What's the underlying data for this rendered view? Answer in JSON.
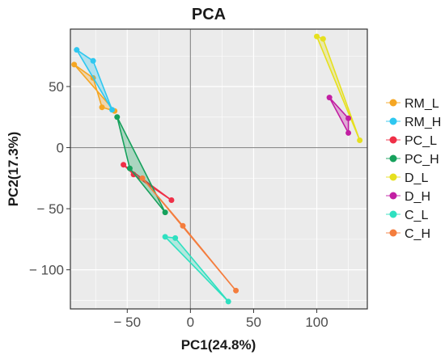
{
  "chart_data": {
    "type": "scatter",
    "title": "PCA",
    "xlabel": "PC1(24.8%)",
    "ylabel": "PC2(17.3%)",
    "xlim": [
      -95,
      140
    ],
    "ylim": [
      -132,
      97
    ],
    "xticks": [
      -50,
      0,
      50,
      100
    ],
    "xtick_labels": [
      "− 50",
      "0",
      "50",
      "100"
    ],
    "yticks": [
      -100,
      -50,
      0,
      50
    ],
    "ytick_labels": [
      "− 100",
      "− 50",
      "0",
      "50"
    ],
    "grid": true,
    "legend_position": "right",
    "series": [
      {
        "name": "RM_L",
        "color": "#f5a623",
        "points": [
          [
            -92,
            68
          ],
          [
            -77,
            57
          ],
          [
            -70,
            33
          ],
          [
            -60,
            30
          ]
        ]
      },
      {
        "name": "RM_H",
        "color": "#2ec7f0",
        "points": [
          [
            -90,
            80
          ],
          [
            -77,
            71
          ],
          [
            -62,
            31
          ]
        ]
      },
      {
        "name": "PC_L",
        "color": "#ef2f47",
        "points": [
          [
            -53,
            -14
          ],
          [
            -45,
            -22
          ],
          [
            -15,
            -43
          ]
        ]
      },
      {
        "name": "PC_H",
        "color": "#16a15c",
        "points": [
          [
            -58,
            25
          ],
          [
            -48,
            -17
          ],
          [
            -20,
            -53
          ]
        ]
      },
      {
        "name": "D_L",
        "color": "#e6e01e",
        "points": [
          [
            100,
            91
          ],
          [
            105,
            89
          ],
          [
            134,
            6
          ]
        ]
      },
      {
        "name": "D_H",
        "color": "#c21fa3",
        "points": [
          [
            110,
            41
          ],
          [
            125,
            24
          ],
          [
            125,
            12
          ]
        ]
      },
      {
        "name": "C_L",
        "color": "#2ee0c0",
        "points": [
          [
            -20,
            -73
          ],
          [
            -12,
            -74
          ],
          [
            30,
            -126
          ]
        ]
      },
      {
        "name": "C_H",
        "color": "#f47d3d",
        "points": [
          [
            -38,
            -25
          ],
          [
            -6,
            -64
          ],
          [
            36,
            -117
          ]
        ]
      }
    ]
  }
}
